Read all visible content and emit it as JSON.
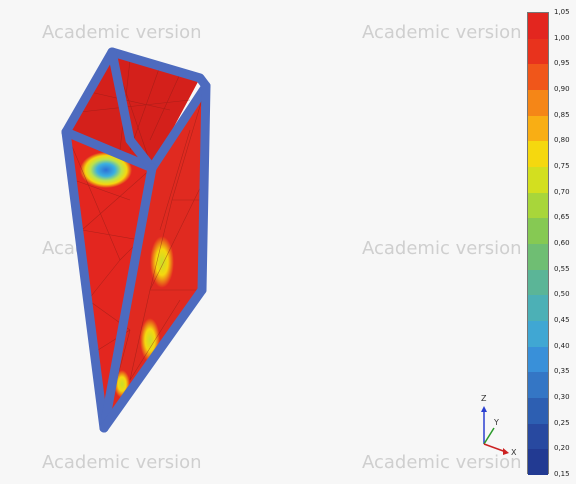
{
  "watermark": {
    "text": "Academic version"
  },
  "legend": {
    "ticks": [
      "1,05",
      "1,00",
      "0,95",
      "0,90",
      "0,85",
      "0,80",
      "0,75",
      "0,70",
      "0,65",
      "0,60",
      "0,55",
      "0,50",
      "0,45",
      "0,40",
      "0,35",
      "0,30",
      "0,25",
      "0,20",
      "0,15"
    ],
    "colors": [
      "#e3261f",
      "#e8331d",
      "#f0561a",
      "#f58617",
      "#f9ae14",
      "#f5d80f",
      "#d3df1f",
      "#a8d63a",
      "#86c953",
      "#6fbe73",
      "#5bb597",
      "#4cb0b6",
      "#40a7d3",
      "#3990d9",
      "#3476c5",
      "#2d5fb2",
      "#2849a0",
      "#223a92"
    ],
    "gradient_style": "stepped"
  },
  "triad": {
    "z_label": "Z",
    "y_label": "Y",
    "x_label": "X",
    "colors": {
      "z": "#2a3fd0",
      "y": "#2a9a2a",
      "x": "#cc2222"
    }
  },
  "model": {
    "fill_color": "#e3261f",
    "frame_color": "#4d6bbf",
    "hotspot_colors": [
      "#2d9ad6",
      "#f5d80f",
      "#a8d63a"
    ]
  }
}
